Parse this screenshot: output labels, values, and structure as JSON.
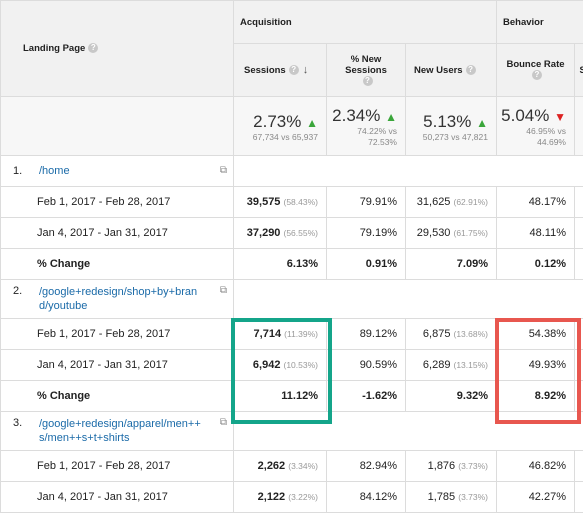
{
  "header": {
    "landing_page": "Landing Page",
    "acquisition": "Acquisition",
    "behavior": "Behavior",
    "columns": {
      "sessions": "Sessions",
      "pct_new_sessions": "% New Sessions",
      "new_users": "New Users",
      "bounce_rate": "Bounce Rate"
    }
  },
  "summary": {
    "sessions": {
      "pct": "2.73%",
      "detail": "67,734 vs 65,937"
    },
    "pct_new_sessions": {
      "pct": "2.34%",
      "detail": "74.22% vs 72.53%"
    },
    "new_users": {
      "pct": "5.13%",
      "detail": "50,273 vs 47,821"
    },
    "bounce_rate": {
      "pct": "5.04%",
      "detail": "46.95% vs 44.69%"
    }
  },
  "rows": [
    {
      "rank": "1.",
      "page": "/home",
      "periods": [
        {
          "date": "Feb 1, 2017 - Feb 28, 2017",
          "sessions": "39,575",
          "sessions_pct": "(58.43%)",
          "pct_new": "79.91%",
          "new_users": "31,625",
          "new_users_pct": "(62.91%)",
          "bounce": "48.17%"
        },
        {
          "date": "Jan 4, 2017 - Jan 31, 2017",
          "sessions": "37,290",
          "sessions_pct": "(56.55%)",
          "pct_new": "79.19%",
          "new_users": "29,530",
          "new_users_pct": "(61.75%)",
          "bounce": "48.11%"
        }
      ],
      "change": {
        "label": "% Change",
        "sessions": "6.13%",
        "pct_new": "0.91%",
        "new_users": "7.09%",
        "bounce": "0.12%"
      }
    },
    {
      "rank": "2.",
      "page_line1": "/google+redesign/shop+by+bran",
      "page_line2": "d/youtube",
      "periods": [
        {
          "date": "Feb 1, 2017 - Feb 28, 2017",
          "sessions": "7,714",
          "sessions_pct": "(11.39%)",
          "pct_new": "89.12%",
          "new_users": "6,875",
          "new_users_pct": "(13.68%)",
          "bounce": "54.38%"
        },
        {
          "date": "Jan 4, 2017 - Jan 31, 2017",
          "sessions": "6,942",
          "sessions_pct": "(10.53%)",
          "pct_new": "90.59%",
          "new_users": "6,289",
          "new_users_pct": "(13.15%)",
          "bounce": "49.93%"
        }
      ],
      "change": {
        "label": "% Change",
        "sessions": "11.12%",
        "pct_new": "-1.62%",
        "new_users": "9.32%",
        "bounce": "8.92%"
      }
    },
    {
      "rank": "3.",
      "page_line1": "/google+redesign/apparel/men++",
      "page_line2": "s/men++s+t+shirts",
      "periods": [
        {
          "date": "Feb 1, 2017 - Feb 28, 2017",
          "sessions": "2,262",
          "sessions_pct": "(3.34%)",
          "pct_new": "82.94%",
          "new_users": "1,876",
          "new_users_pct": "(3.73%)",
          "bounce": "46.82%"
        },
        {
          "date": "Jan 4, 2017 - Jan 31, 2017",
          "sessions": "2,122",
          "sessions_pct": "(3.22%)",
          "pct_new": "84.12%",
          "new_users": "1,785",
          "new_users_pct": "(3.73%)",
          "bounce": "42.27%"
        }
      ]
    }
  ],
  "colors": {
    "highlight_green": "#14a58a",
    "highlight_red": "#e8574f",
    "up_arrow": "#3aa63a",
    "down_arrow": "#dd2222"
  }
}
